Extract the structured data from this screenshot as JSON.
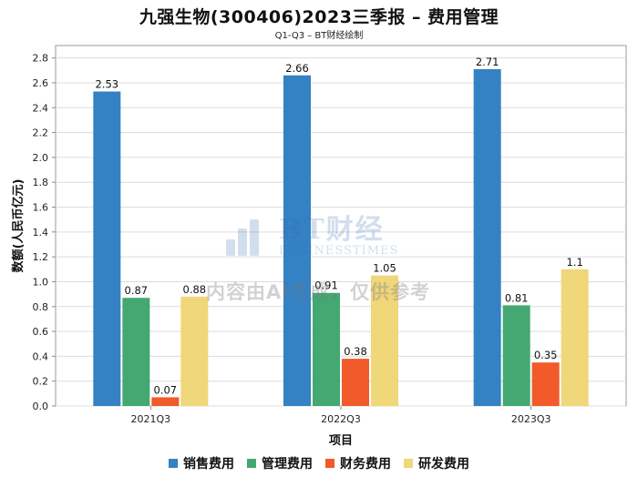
{
  "header": {
    "title": "九强生物(300406)2023三季报 – 费用管理",
    "subtitle": "Q1-Q3 – BT财经绘制"
  },
  "watermark": {
    "brand": "BT财经",
    "brand_en": "BUSINESSTIMES",
    "note": "内容由AI生成，仅供参考"
  },
  "chart_data": {
    "type": "bar",
    "title": "九强生物(300406)2023三季报 – 费用管理",
    "subtitle": "Q1-Q3 – BT财经绘制",
    "xlabel": "项目",
    "ylabel": "数额(人民币亿元)",
    "categories": [
      "2021Q3",
      "2022Q3",
      "2023Q3"
    ],
    "ylim": [
      0,
      2.9
    ],
    "yticks": [
      "0.0",
      "0.2",
      "0.4",
      "0.6",
      "0.8",
      "1.0",
      "1.2",
      "1.4",
      "1.6",
      "1.8",
      "2.0",
      "2.2",
      "2.4",
      "2.6",
      "2.8"
    ],
    "grid": true,
    "legend_position": "bottom",
    "series": [
      {
        "name": "销售费用",
        "color": "#3481c3",
        "values": [
          2.53,
          2.66,
          2.71
        ],
        "labels": [
          "2.53",
          "2.66",
          "2.71"
        ]
      },
      {
        "name": "管理费用",
        "color": "#43a871",
        "values": [
          0.87,
          0.91,
          0.81
        ],
        "labels": [
          "0.87",
          "0.91",
          "0.81"
        ]
      },
      {
        "name": "财务费用",
        "color": "#f15a2a",
        "values": [
          0.07,
          0.38,
          0.35
        ],
        "labels": [
          "0.07",
          "0.38",
          "0.35"
        ]
      },
      {
        "name": "研发费用",
        "color": "#efd77a",
        "values": [
          0.88,
          1.05,
          1.1
        ],
        "labels": [
          "0.88",
          "1.05",
          "1.1"
        ]
      }
    ]
  }
}
